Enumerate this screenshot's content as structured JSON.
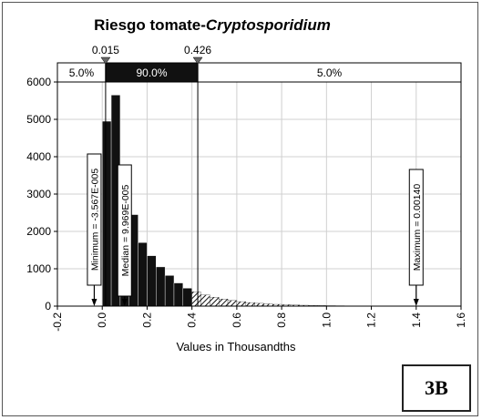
{
  "chart_data": {
    "type": "bar",
    "title": "Riesgo tomate-",
    "title_italic": "Cryptosporidium",
    "xlabel": "Values in Thousandths",
    "ylabel": "",
    "xlim": [
      -0.2,
      1.6
    ],
    "ylim": [
      0,
      6000
    ],
    "xticks": [
      "-0.2",
      "0.0",
      "0.2",
      "0.4",
      "0.6",
      "0.8",
      "1.0",
      "1.2",
      "1.4",
      "1.6"
    ],
    "xtick_values": [
      -0.2,
      0.0,
      0.2,
      0.4,
      0.6,
      0.8,
      1.0,
      1.2,
      1.4,
      1.6
    ],
    "yticks": [
      "0",
      "1000",
      "2000",
      "3000",
      "4000",
      "5000",
      "6000"
    ],
    "ytick_values": [
      0,
      1000,
      2000,
      3000,
      4000,
      5000,
      6000
    ],
    "grid": true,
    "bin_width": 0.04,
    "bin_starts": [
      0.0,
      0.04,
      0.08,
      0.12,
      0.16,
      0.2,
      0.24,
      0.28,
      0.32,
      0.36,
      0.4,
      0.44,
      0.48,
      0.52,
      0.56,
      0.6,
      0.64,
      0.68,
      0.72,
      0.76,
      0.8,
      0.84,
      0.88,
      0.92,
      0.96,
      1.0,
      1.04,
      1.08,
      1.12,
      1.16,
      1.2,
      1.24,
      1.28,
      1.32,
      1.36
    ],
    "values": [
      4950,
      5650,
      3750,
      2450,
      1700,
      1350,
      1050,
      820,
      620,
      480,
      380,
      300,
      240,
      190,
      150,
      120,
      95,
      75,
      60,
      48,
      38,
      30,
      24,
      19,
      15,
      12,
      10,
      8,
      6,
      5,
      4,
      3,
      3,
      2,
      2
    ],
    "percentile_bar": {
      "left_value": "0.015",
      "right_value": "0.426",
      "left_x": 0.015,
      "right_x": 0.426,
      "segments": [
        "5.0%",
        "90.0%",
        "5.0%"
      ]
    },
    "markers": [
      {
        "label": "Minimum = -3.567E-005",
        "x": -0.0357
      },
      {
        "label": "Median = 9.969E-005",
        "x": 0.0997
      },
      {
        "label": "Maximum = 0.00140",
        "x": 1.4
      }
    ]
  },
  "panel_label": "3B",
  "colors": {
    "bars": "#111111",
    "tail_hatch": "#111111",
    "grid": "#d0d0d0",
    "axis": "#000000",
    "band_dark": "#111111",
    "band_light": "#ffffff"
  }
}
